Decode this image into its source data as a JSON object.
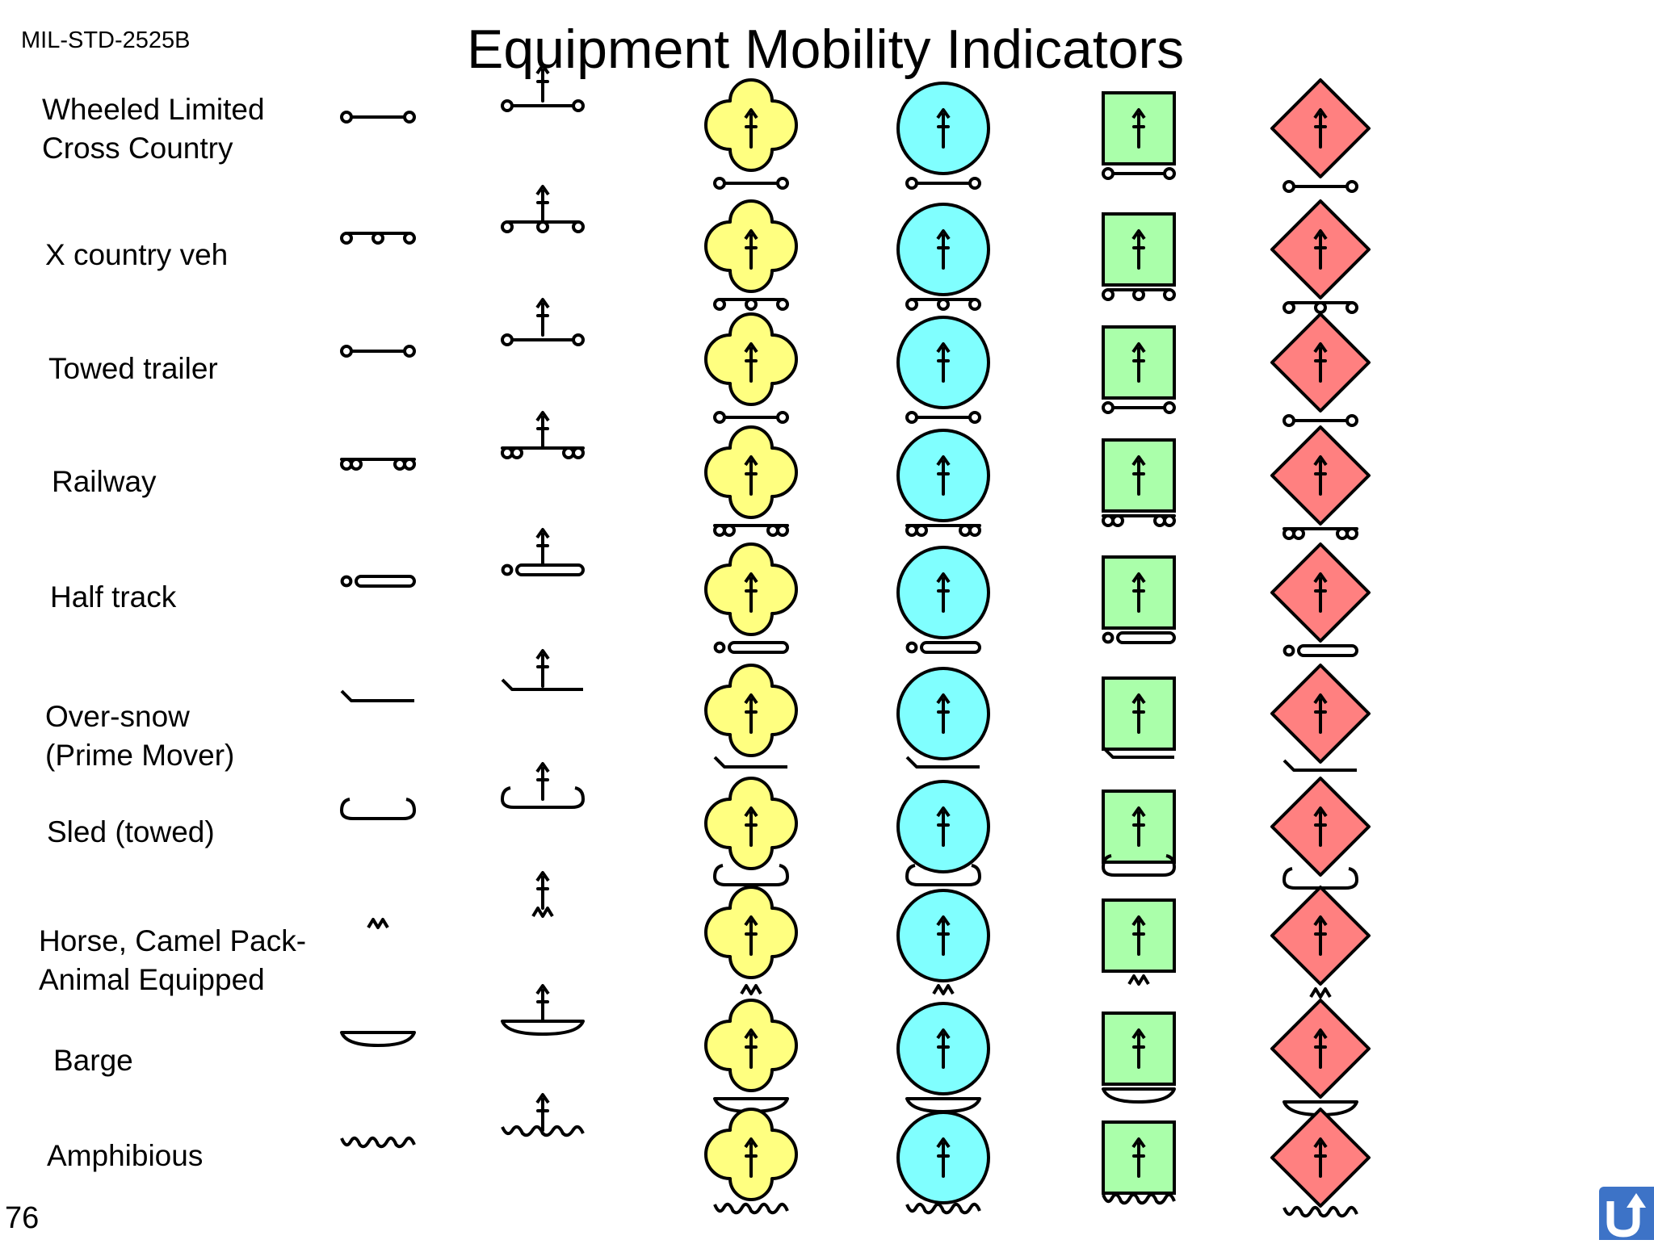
{
  "header": {
    "standard": "MIL-STD-2525B",
    "title": "Equipment Mobility Indicators"
  },
  "footer": {
    "page_number": "76",
    "nav_icon": "return-arrow-icon"
  },
  "colors": {
    "unknown": "#ffff80",
    "friend": "#80ffff",
    "neutral": "#aaffaa",
    "hostile": "#ff8080"
  },
  "frames": [
    "unknown-clover",
    "friend-circle",
    "neutral-square",
    "hostile-diamond"
  ],
  "rows": [
    {
      "id": "wheeled",
      "label": "Wheeled Limited\n  Cross Country"
    },
    {
      "id": "xcountry",
      "label": "X country veh"
    },
    {
      "id": "towed",
      "label": "Towed trailer"
    },
    {
      "id": "railway",
      "label": "Railway"
    },
    {
      "id": "halftrack",
      "label": "Half track"
    },
    {
      "id": "oversnow",
      "label": "Over-snow\n(Prime Mover)"
    },
    {
      "id": "sled",
      "label": "Sled (towed)"
    },
    {
      "id": "animal",
      "label": "Horse, Camel Pack-\nAnimal Equipped"
    },
    {
      "id": "barge",
      "label": "Barge"
    },
    {
      "id": "amphibious",
      "label": "Amphibious"
    }
  ]
}
